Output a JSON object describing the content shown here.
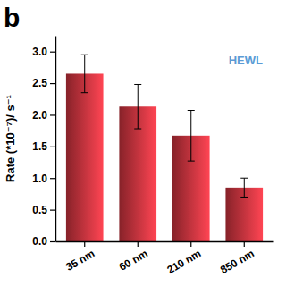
{
  "chart_data": {
    "type": "bar",
    "annotations": [
      "b",
      "HEWL"
    ],
    "y_label": "Rate (*10⁻⁷)/ s⁻¹",
    "categories": [
      "35 nm",
      "60 nm",
      "210 nm",
      "850 nm"
    ],
    "values": [
      2.65,
      2.13,
      1.67,
      0.85
    ],
    "errors": [
      0.3,
      0.35,
      0.4,
      0.15
    ],
    "color": "#c8323c",
    "ylim": [
      0,
      3.25
    ],
    "yticks": [
      {
        "value": 0,
        "label": "0.0"
      },
      {
        "value": 0.5,
        "label": "0.5"
      },
      {
        "value": 1,
        "label": "1.0"
      },
      {
        "value": 1.5,
        "label": "1.5"
      },
      {
        "value": 2,
        "label": "2.0"
      },
      {
        "value": 2.5,
        "label": "2.5"
      },
      {
        "value": 3,
        "label": "3.0"
      }
    ],
    "grid": false
  }
}
